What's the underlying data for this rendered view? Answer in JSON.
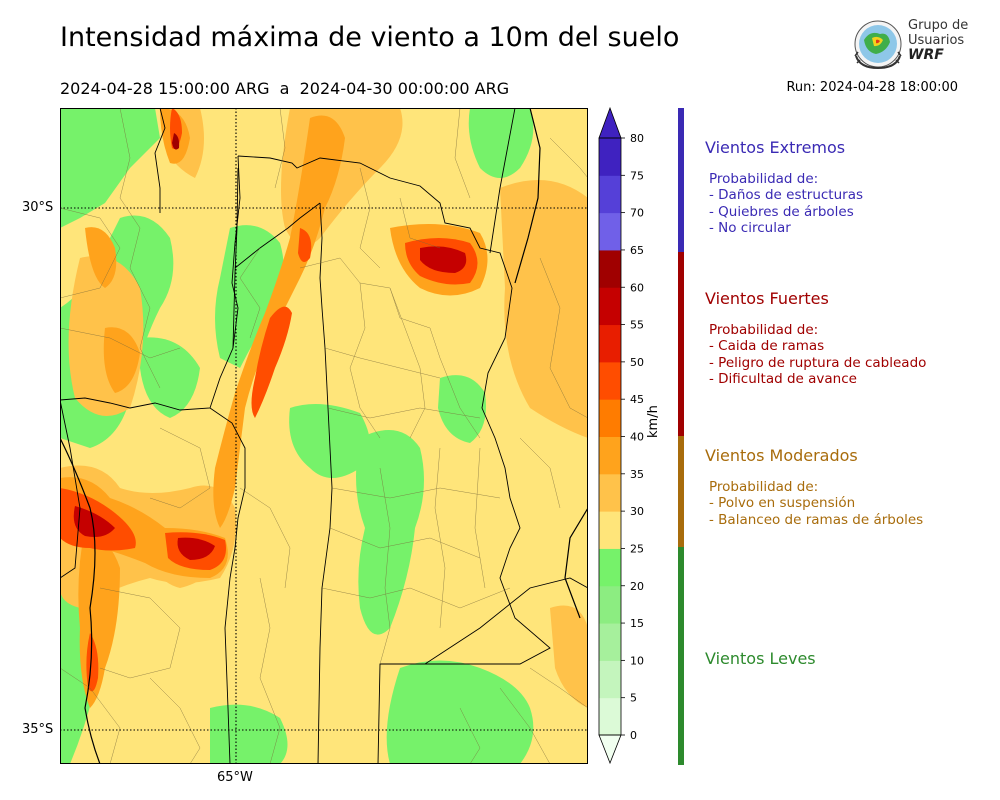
{
  "header": {
    "title": "Intensidad máxima de viento a 10m del suelo",
    "period": "2024-04-28 15:00:00 ARG  a  2024-04-30 00:00:00 ARG",
    "run": "Run: 2024-04-28 18:00:00"
  },
  "logo": {
    "line1": "Grupo de",
    "line2": "Usuarios",
    "line3": "WRF"
  },
  "map": {
    "lat_labels": [
      "30°S",
      "35°S"
    ],
    "lon_labels": [
      "65°W"
    ],
    "extent": {
      "lon": [
        -67.3,
        -60.4
      ],
      "lat": [
        -35.3,
        -28.9
      ]
    }
  },
  "colorbar": {
    "unit": "km/h",
    "ticks": [
      "0",
      "5",
      "10",
      "15",
      "20",
      "25",
      "30",
      "35",
      "40",
      "45",
      "50",
      "55",
      "60",
      "65",
      "70",
      "75",
      "80"
    ],
    "colors": [
      "#f1fff0",
      "#dcfad7",
      "#c4f5bd",
      "#a6f09c",
      "#8ced81",
      "#76f26a",
      "#ffe57a",
      "#ffc24a",
      "#ffa31c",
      "#ff7c00",
      "#ff4d00",
      "#e81e00",
      "#c50000",
      "#a00000",
      "#7060e8",
      "#5540d8",
      "#3f22c0"
    ],
    "extend_color_low": "#f1fff0",
    "extend_color_high": "#3f22c0"
  },
  "categories": [
    {
      "name": "Vientos Extremos",
      "color": "#3a2ab4",
      "intro": "Probabilidad de:",
      "items": [
        "- Daños de estructuras",
        "- Quiebres de árboles",
        "- No circular"
      ]
    },
    {
      "name": "Vientos Fuertes",
      "color": "#a00000",
      "intro": "Probabilidad de:",
      "items": [
        "- Caida de ramas",
        "- Peligro de ruptura de cableado",
        "- Dificultad de avance"
      ]
    },
    {
      "name": "Vientos Moderados",
      "color": "#a86c0c",
      "intro": "Probabilidad de:",
      "items": [
        "- Polvo en suspensión",
        "- Balanceo de ramas de árboles"
      ]
    },
    {
      "name": "Vientos Leves",
      "color": "#2d8a2d",
      "intro": "",
      "items": []
    }
  ]
}
